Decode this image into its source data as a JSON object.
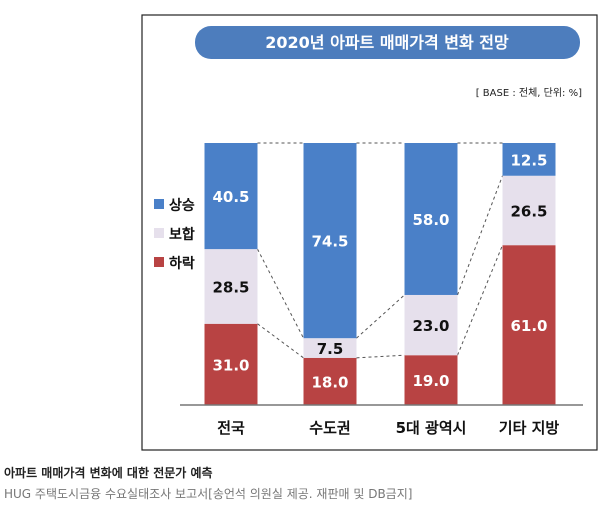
{
  "chart_data": {
    "type": "bar",
    "stacked": true,
    "title": "2020년 아파트 매매가격 변화 전망",
    "note": "[ BASE : 전체, 단위: %]",
    "categories": [
      "전국",
      "수도권",
      "5대 광역시",
      "기타 지방"
    ],
    "series": [
      {
        "name": "하락",
        "values": [
          31.0,
          18.0,
          19.0,
          61.0
        ],
        "color": "#b84343",
        "label_color": "#ffffff"
      },
      {
        "name": "보합",
        "values": [
          28.5,
          7.5,
          23.0,
          26.5
        ],
        "color": "#e6e0ec",
        "label_color": "#111111"
      },
      {
        "name": "상승",
        "values": [
          40.5,
          74.5,
          58.0,
          12.5
        ],
        "color": "#4a80c8",
        "label_color": "#ffffff"
      }
    ],
    "legend_order": [
      "상승",
      "보합",
      "하락"
    ],
    "legend_position": "left",
    "ylim": [
      0,
      100
    ],
    "grid": false,
    "connector_lines": "dashed",
    "title_bar_color": "#4d7dbd",
    "frame_color": "#222222"
  },
  "caption": {
    "title": "아파트 매매가격 변화에 대한 전문가 예측",
    "source": "HUG 주택도시금융 수요실태조사 보고서[송언석 의원실 제공. 재판매 및 DB금지]"
  }
}
